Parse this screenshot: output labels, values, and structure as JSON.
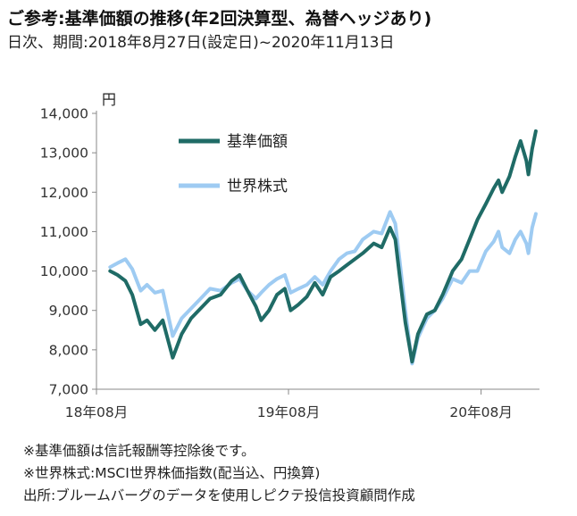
{
  "header": {
    "title": "ご参考:基準価額の推移(年2回決算型、為替ヘッジあり)",
    "subtitle": "日次、期間:2018年8月27日(設定日)~2020年11月13日"
  },
  "notes": [
    "※基準価額は信託報酬等控除後です。",
    "※世界株式:MSCI世界株価指数(配当込、円換算)",
    "出所:ブルームバーグのデータを使用しピクテ投信投資顧問作成"
  ],
  "chart_data": {
    "type": "line",
    "ylabel": "円",
    "ylim": [
      7000,
      14000
    ],
    "yticks": [
      7000,
      8000,
      9000,
      10000,
      11000,
      12000,
      13000,
      14000
    ],
    "ytick_labels": [
      "7,000",
      "8,000",
      "9,000",
      "10,000",
      "11,000",
      "12,000",
      "13,000",
      "14,000"
    ],
    "xlim": [
      "2018-08-27",
      "2020-11-13"
    ],
    "xticks": [
      {
        "date": "2018-08-01",
        "label": "18年08月"
      },
      {
        "date": "2019-08-01",
        "label": "19年08月"
      },
      {
        "date": "2020-08-01",
        "label": "20年08月"
      }
    ],
    "grid": false,
    "legend_position": "top-left",
    "series": [
      {
        "name": "基準価額",
        "color": "#1f6b66",
        "points": [
          [
            "2018-08-27",
            10000
          ],
          [
            "2018-09-10",
            9900
          ],
          [
            "2018-09-25",
            9750
          ],
          [
            "2018-10-08",
            9400
          ],
          [
            "2018-10-24",
            8650
          ],
          [
            "2018-11-05",
            8750
          ],
          [
            "2018-11-20",
            8500
          ],
          [
            "2018-12-05",
            8750
          ],
          [
            "2018-12-24",
            7800
          ],
          [
            "2019-01-10",
            8400
          ],
          [
            "2019-01-28",
            8800
          ],
          [
            "2019-02-15",
            9050
          ],
          [
            "2019-03-05",
            9300
          ],
          [
            "2019-03-25",
            9400
          ],
          [
            "2019-04-15",
            9750
          ],
          [
            "2019-04-30",
            9900
          ],
          [
            "2019-05-15",
            9500
          ],
          [
            "2019-05-31",
            9100
          ],
          [
            "2019-06-10",
            8750
          ],
          [
            "2019-06-25",
            9000
          ],
          [
            "2019-07-10",
            9400
          ],
          [
            "2019-07-25",
            9550
          ],
          [
            "2019-08-05",
            9000
          ],
          [
            "2019-08-20",
            9150
          ],
          [
            "2019-09-05",
            9350
          ],
          [
            "2019-09-20",
            9700
          ],
          [
            "2019-10-05",
            9400
          ],
          [
            "2019-10-20",
            9850
          ],
          [
            "2019-11-05",
            10000
          ],
          [
            "2019-11-20",
            10150
          ],
          [
            "2019-12-05",
            10300
          ],
          [
            "2019-12-20",
            10450
          ],
          [
            "2020-01-10",
            10700
          ],
          [
            "2020-01-25",
            10600
          ],
          [
            "2020-02-10",
            11100
          ],
          [
            "2020-02-20",
            10800
          ],
          [
            "2020-02-28",
            9900
          ],
          [
            "2020-03-10",
            8700
          ],
          [
            "2020-03-23",
            7700
          ],
          [
            "2020-04-03",
            8400
          ],
          [
            "2020-04-20",
            8900
          ],
          [
            "2020-05-05",
            9000
          ],
          [
            "2020-05-20",
            9400
          ],
          [
            "2020-06-08",
            10000
          ],
          [
            "2020-06-25",
            10300
          ],
          [
            "2020-07-10",
            10800
          ],
          [
            "2020-07-25",
            11300
          ],
          [
            "2020-08-10",
            11700
          ],
          [
            "2020-08-25",
            12100
          ],
          [
            "2020-09-03",
            12300
          ],
          [
            "2020-09-10",
            12000
          ],
          [
            "2020-09-24",
            12400
          ],
          [
            "2020-10-05",
            12900
          ],
          [
            "2020-10-15",
            13300
          ],
          [
            "2020-10-26",
            12800
          ],
          [
            "2020-10-30",
            12450
          ],
          [
            "2020-11-06",
            13100
          ],
          [
            "2020-11-13",
            13550
          ]
        ]
      },
      {
        "name": "世界株式",
        "color": "#9ecbf2",
        "points": [
          [
            "2018-08-27",
            10100
          ],
          [
            "2018-09-10",
            10200
          ],
          [
            "2018-09-25",
            10300
          ],
          [
            "2018-10-08",
            10050
          ],
          [
            "2018-10-24",
            9500
          ],
          [
            "2018-11-05",
            9650
          ],
          [
            "2018-11-20",
            9450
          ],
          [
            "2018-12-05",
            9500
          ],
          [
            "2018-12-24",
            8350
          ],
          [
            "2019-01-10",
            8800
          ],
          [
            "2019-01-28",
            9050
          ],
          [
            "2019-02-15",
            9300
          ],
          [
            "2019-03-05",
            9550
          ],
          [
            "2019-03-25",
            9500
          ],
          [
            "2019-04-15",
            9700
          ],
          [
            "2019-04-30",
            9800
          ],
          [
            "2019-05-15",
            9500
          ],
          [
            "2019-05-31",
            9300
          ],
          [
            "2019-06-10",
            9450
          ],
          [
            "2019-06-25",
            9650
          ],
          [
            "2019-07-10",
            9800
          ],
          [
            "2019-07-25",
            9900
          ],
          [
            "2019-08-05",
            9450
          ],
          [
            "2019-08-20",
            9550
          ],
          [
            "2019-09-05",
            9650
          ],
          [
            "2019-09-20",
            9850
          ],
          [
            "2019-10-05",
            9650
          ],
          [
            "2019-10-20",
            10000
          ],
          [
            "2019-11-05",
            10300
          ],
          [
            "2019-11-20",
            10450
          ],
          [
            "2019-12-05",
            10500
          ],
          [
            "2019-12-20",
            10800
          ],
          [
            "2020-01-10",
            11000
          ],
          [
            "2020-01-25",
            10950
          ],
          [
            "2020-02-10",
            11500
          ],
          [
            "2020-02-20",
            11200
          ],
          [
            "2020-02-28",
            10300
          ],
          [
            "2020-03-10",
            9000
          ],
          [
            "2020-03-23",
            7650
          ],
          [
            "2020-04-03",
            8300
          ],
          [
            "2020-04-20",
            8800
          ],
          [
            "2020-05-05",
            9000
          ],
          [
            "2020-05-20",
            9300
          ],
          [
            "2020-06-08",
            9800
          ],
          [
            "2020-06-25",
            9700
          ],
          [
            "2020-07-10",
            10000
          ],
          [
            "2020-07-25",
            10000
          ],
          [
            "2020-08-10",
            10500
          ],
          [
            "2020-08-25",
            10750
          ],
          [
            "2020-09-03",
            11000
          ],
          [
            "2020-09-10",
            10600
          ],
          [
            "2020-09-24",
            10450
          ],
          [
            "2020-10-05",
            10800
          ],
          [
            "2020-10-15",
            11000
          ],
          [
            "2020-10-26",
            10700
          ],
          [
            "2020-10-30",
            10450
          ],
          [
            "2020-11-06",
            11100
          ],
          [
            "2020-11-13",
            11450
          ]
        ]
      }
    ]
  }
}
